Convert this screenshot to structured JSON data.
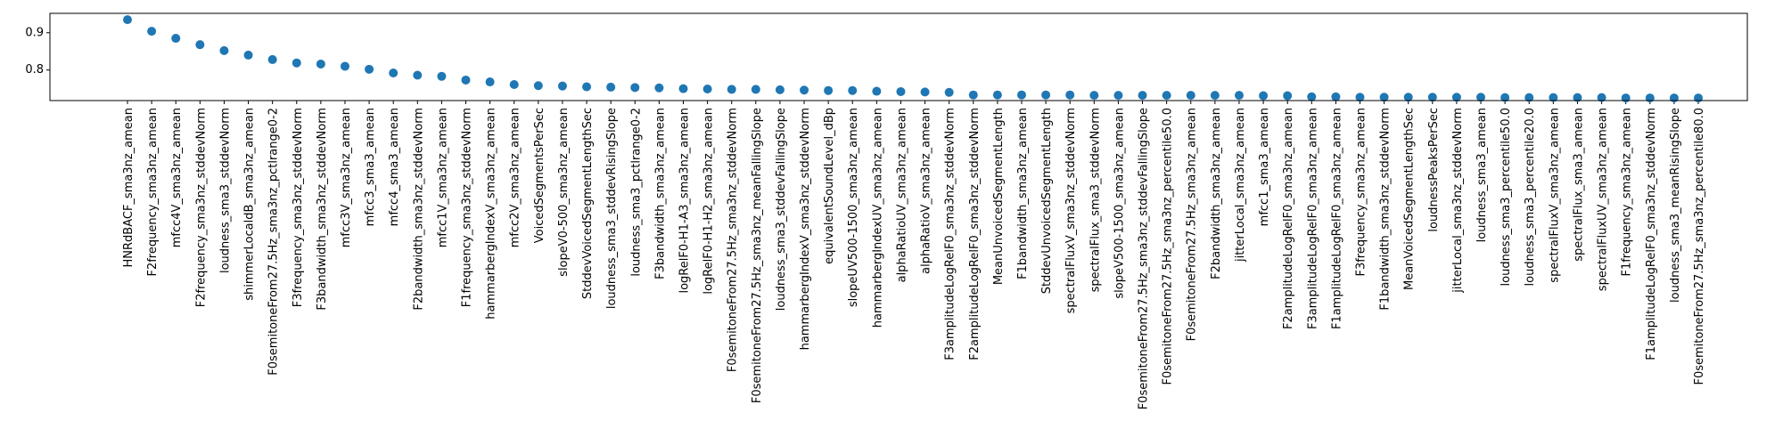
{
  "chart_data": {
    "type": "scatter",
    "title": "",
    "xlabel": "",
    "ylabel": "",
    "ylim": [
      0.718,
      0.952
    ],
    "yticks": [
      0.8,
      0.9
    ],
    "ytick_labels": [
      "0.8",
      "0.9"
    ],
    "grid": false,
    "legend": "none",
    "marker_color": "#1f77b4",
    "categories": [
      "HNRdBACF_sma3nz_amean",
      "F2frequency_sma3nz_amean",
      "mfcc4V_sma3nz_amean",
      "F2frequency_sma3nz_stddevNorm",
      "loudness_sma3_stddevNorm",
      "shimmerLocaldB_sma3nz_amean",
      "F0semitoneFrom27.5Hz_sma3nz_pctlrange0-2",
      "F3frequency_sma3nz_stddevNorm",
      "F3bandwidth_sma3nz_stddevNorm",
      "mfcc3V_sma3nz_amean",
      "mfcc3_sma3_amean",
      "mfcc4_sma3_amean",
      "F2bandwidth_sma3nz_stddevNorm",
      "mfcc1V_sma3nz_amean",
      "F1frequency_sma3nz_stddevNorm",
      "hammarbergIndexV_sma3nz_amean",
      "mfcc2V_sma3nz_amean",
      "VoicedSegmentsPerSec",
      "slopeV0-500_sma3nz_amean",
      "StddevVoicedSegmentLengthSec",
      "loudness_sma3_stddevRisingSlope",
      "loudness_sma3_pctlrange0-2",
      "F3bandwidth_sma3nz_amean",
      "logRelF0-H1-A3_sma3nz_amean",
      "logRelF0-H1-H2_sma3nz_amean",
      "F0semitoneFrom27.5Hz_sma3nz_stddevNorm",
      "F0semitoneFrom27.5Hz_sma3nz_meanFallingSlope",
      "loudness_sma3_stddevFallingSlope",
      "hammarbergIndexV_sma3nz_stddevNorm",
      "equivalentSoundLevel_dBp",
      "slopeUV500-1500_sma3nz_amean",
      "hammarbergIndexUV_sma3nz_amean",
      "alphaRatioUV_sma3nz_amean",
      "alphaRatioV_sma3nz_amean",
      "F3amplitudeLogRelF0_sma3nz_stddevNorm",
      "F2amplitudeLogRelF0_sma3nz_stddevNorm",
      "MeanUnvoicedSegmentLength",
      "F1bandwidth_sma3nz_amean",
      "StddevUnvoicedSegmentLength",
      "spectralFluxV_sma3nz_stddevNorm",
      "spectralFlux_sma3_stddevNorm",
      "slopeV500-1500_sma3nz_amean",
      "F0semitoneFrom27.5Hz_sma3nz_stddevFallingSlope",
      "F0semitoneFrom27.5Hz_sma3nz_percentile50.0",
      "F0semitoneFrom27.5Hz_sma3nz_amean",
      "F2bandwidth_sma3nz_amean",
      "jitterLocal_sma3nz_amean",
      "mfcc1_sma3_amean",
      "F2amplitudeLogRelF0_sma3nz_amean",
      "F3amplitudeLogRelF0_sma3nz_amean",
      "F1amplitudeLogRelF0_sma3nz_amean",
      "F3frequency_sma3nz_amean",
      "F1bandwidth_sma3nz_stddevNorm",
      "MeanVoicedSegmentLengthSec",
      "loudnessPeaksPerSec",
      "jitterLocal_sma3nz_stddevNorm",
      "loudness_sma3_amean",
      "loudness_sma3_percentile50.0",
      "loudness_sma3_percentile20.0",
      "spectralFluxV_sma3nz_amean",
      "spectralFlux_sma3_amean",
      "spectralFluxUV_sma3nz_amean",
      "F1frequency_sma3nz_amean",
      "F1amplitudeLogRelF0_sma3nz_stddevNorm",
      "loudness_sma3_meanRisingSlope",
      "F0semitoneFrom27.5Hz_sma3nz_percentile80.0"
    ],
    "values": [
      0.935,
      0.904,
      0.885,
      0.868,
      0.852,
      0.84,
      0.828,
      0.819,
      0.816,
      0.81,
      0.802,
      0.792,
      0.786,
      0.783,
      0.773,
      0.768,
      0.761,
      0.758,
      0.757,
      0.755,
      0.754,
      0.753,
      0.752,
      0.75,
      0.749,
      0.748,
      0.748,
      0.747,
      0.746,
      0.745,
      0.745,
      0.743,
      0.742,
      0.741,
      0.74,
      0.733,
      0.733,
      0.733,
      0.733,
      0.733,
      0.732,
      0.732,
      0.732,
      0.732,
      0.732,
      0.732,
      0.732,
      0.731,
      0.731,
      0.728,
      0.728,
      0.727,
      0.727,
      0.727,
      0.727,
      0.727,
      0.727,
      0.726,
      0.726,
      0.726,
      0.726,
      0.726,
      0.725,
      0.725,
      0.725,
      0.725
    ]
  }
}
